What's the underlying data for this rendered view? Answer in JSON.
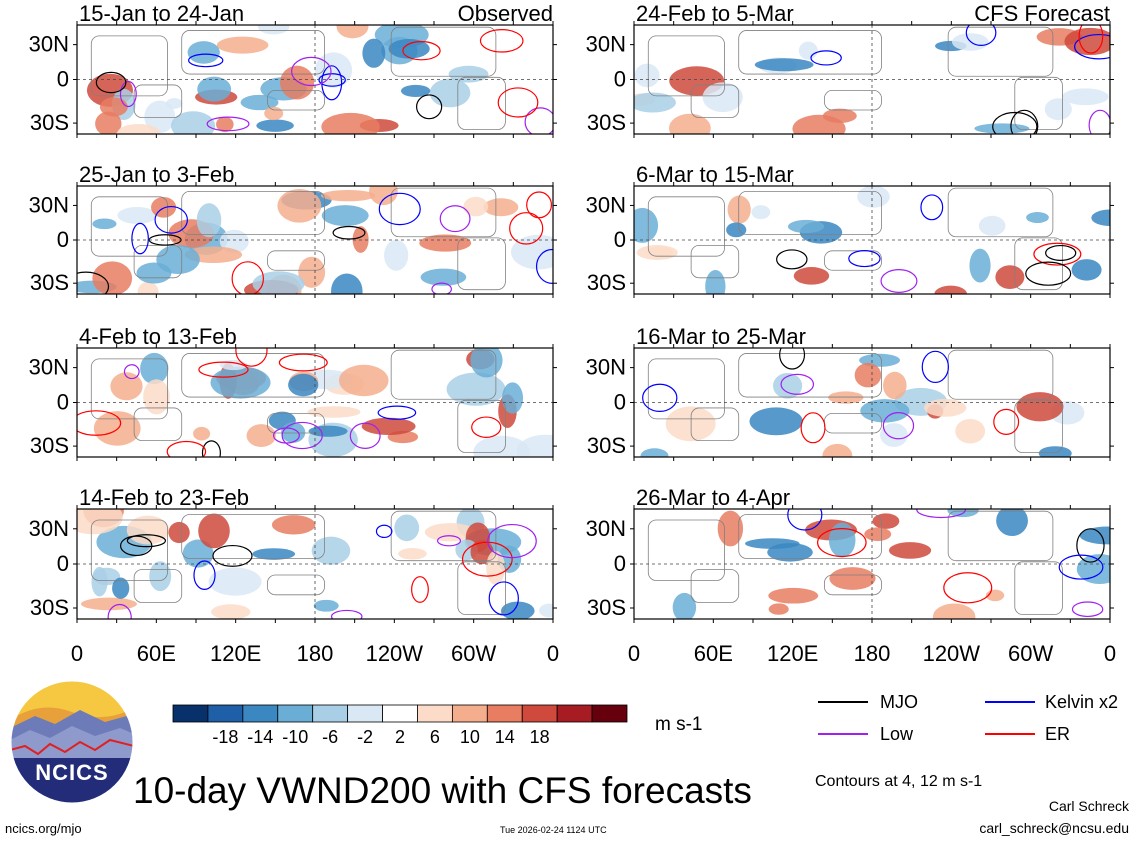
{
  "chart_data": {
    "type": "heatmap",
    "title": "10-day VWND200 with CFS forecasts",
    "variable": "VWND200",
    "units": "m s-1",
    "contour_note": "Contours at 4, 12 m s-1",
    "colorbar": {
      "ticks": [
        "-18",
        "-14",
        "-10",
        "-6",
        "-2",
        "2",
        "6",
        "10",
        "14",
        "18"
      ],
      "colors": [
        "#08306b",
        "#1f5fa8",
        "#3a87c2",
        "#6aaed6",
        "#a9cfe6",
        "#d9e8f4",
        "#ffffff",
        "#fcdcc8",
        "#f4ae8e",
        "#e87d62",
        "#cf4a3c",
        "#a61c22",
        "#67000d"
      ]
    },
    "lat_labels": [
      "30N",
      "0",
      "30S"
    ],
    "lon_labels": [
      "0",
      "60E",
      "120E",
      "180",
      "120W",
      "60W",
      "0"
    ],
    "observed_label": "Observed",
    "forecast_label": "CFS Forecast",
    "left_panels": [
      {
        "period": "15-Jan to 24-Jan"
      },
      {
        "period": "25-Jan to 3-Feb"
      },
      {
        "period": "4-Feb to 13-Feb"
      },
      {
        "period": "14-Feb to 23-Feb"
      }
    ],
    "right_panels": [
      {
        "period": "24-Feb to 5-Mar"
      },
      {
        "period": "6-Mar to 15-Mar"
      },
      {
        "period": "16-Mar to 25-Mar"
      },
      {
        "period": "26-Mar to 4-Apr"
      }
    ],
    "contour_legend": [
      {
        "label": "MJO",
        "color": "#000000"
      },
      {
        "label": "Low",
        "color": "#a020f0"
      },
      {
        "label": "Kelvin x2",
        "color": "#0000ff"
      },
      {
        "label": "ER",
        "color": "#ff0000"
      }
    ]
  },
  "branding": {
    "logo_text": "NCICS",
    "site": "ncics.org/mjo",
    "timestamp": "Tue 2026-02-24 1124 UTC",
    "author": "Carl Schreck",
    "email": "carl_schreck@ncsu.edu"
  }
}
